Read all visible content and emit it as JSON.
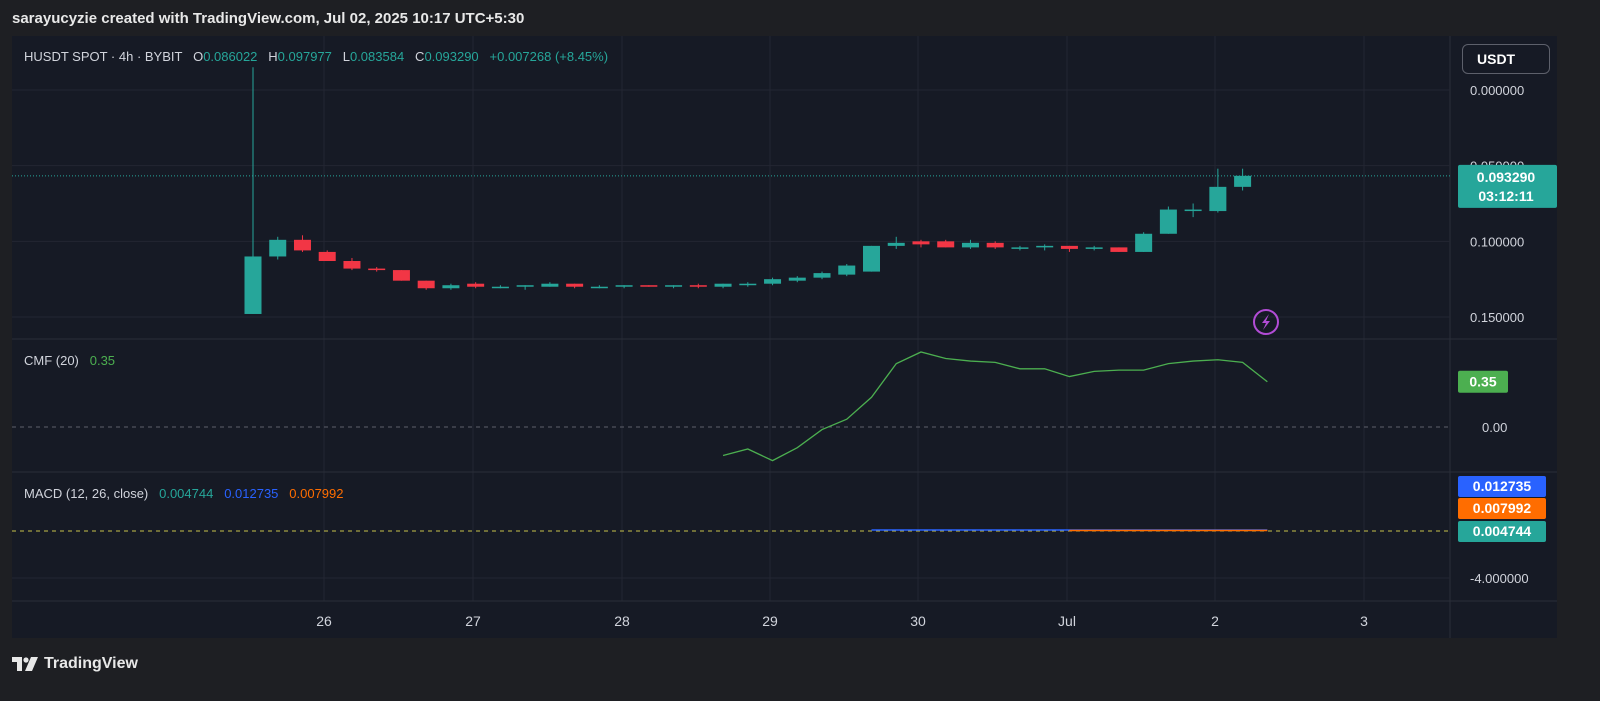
{
  "caption": "sarayucyzie created with TradingView.com, Jul 02, 2025 10:17 UTC+5:30",
  "currency_button": "USDT",
  "brand": "TradingView",
  "colors": {
    "up": "#26a69a",
    "down": "#f23645",
    "cmf": "#4caf50",
    "macd": "#2962ff",
    "signal": "#ff6d00",
    "histogram": "#26a69a",
    "price_line": "#26a69a",
    "bolt": "#b24cd6"
  },
  "price_pane": {
    "symbol": "HUSDT SPOT · 4h · BYBIT",
    "open_label": "O",
    "open": "0.086022",
    "high_label": "H",
    "high": "0.097977",
    "low_label": "L",
    "low": "0.083584",
    "close_label": "C",
    "close": "0.093290",
    "change": "+0.007268 (+8.45%)",
    "price_tag": "0.093290",
    "countdown": "03:12:11",
    "y_ticks": [
      "0.150000",
      "0.100000",
      "0.050000",
      "0.000000"
    ],
    "icon": "lightning-bolt-icon"
  },
  "cmf_pane": {
    "label": "CMF (20)",
    "value": "0.35",
    "y_ticks": [
      "0.00"
    ]
  },
  "macd_pane": {
    "label": "MACD (12, 26, close)",
    "hist_value": "0.004744",
    "macd_value": "0.012735",
    "signal_value": "0.007992",
    "y_ticks": [
      "-4.000000"
    ]
  },
  "x_axis": {
    "ticks": [
      "26",
      "27",
      "28",
      "29",
      "30",
      "Jul",
      "2",
      "3"
    ]
  },
  "chart_data": [
    {
      "type": "candlestick",
      "interval": "4h",
      "x_labels": [
        "26",
        "27",
        "28",
        "29",
        "30",
        "Jul",
        "2",
        "3"
      ],
      "ylim": [
        -0.01,
        0.17
      ],
      "y_ticks": [
        0.0,
        0.05,
        0.1,
        0.15
      ],
      "last_price": 0.09329,
      "candles": [
        {
          "o": 0.002,
          "h": 0.165,
          "l": 0.002,
          "c": 0.04
        },
        {
          "o": 0.04,
          "h": 0.053,
          "l": 0.038,
          "c": 0.051
        },
        {
          "o": 0.051,
          "h": 0.054,
          "l": 0.043,
          "c": 0.044
        },
        {
          "o": 0.043,
          "h": 0.044,
          "l": 0.037,
          "c": 0.037
        },
        {
          "o": 0.037,
          "h": 0.039,
          "l": 0.031,
          "c": 0.032
        },
        {
          "o": 0.032,
          "h": 0.033,
          "l": 0.03,
          "c": 0.031
        },
        {
          "o": 0.031,
          "h": 0.031,
          "l": 0.024,
          "c": 0.024
        },
        {
          "o": 0.024,
          "h": 0.024,
          "l": 0.018,
          "c": 0.019
        },
        {
          "o": 0.019,
          "h": 0.022,
          "l": 0.018,
          "c": 0.021
        },
        {
          "o": 0.022,
          "h": 0.023,
          "l": 0.019,
          "c": 0.02
        },
        {
          "o": 0.02,
          "h": 0.021,
          "l": 0.019,
          "c": 0.02
        },
        {
          "o": 0.02,
          "h": 0.021,
          "l": 0.018,
          "c": 0.021
        },
        {
          "o": 0.02,
          "h": 0.023,
          "l": 0.02,
          "c": 0.022
        },
        {
          "o": 0.022,
          "h": 0.022,
          "l": 0.019,
          "c": 0.02
        },
        {
          "o": 0.02,
          "h": 0.021,
          "l": 0.019,
          "c": 0.02
        },
        {
          "o": 0.02,
          "h": 0.021,
          "l": 0.019,
          "c": 0.021
        },
        {
          "o": 0.021,
          "h": 0.021,
          "l": 0.02,
          "c": 0.02
        },
        {
          "o": 0.02,
          "h": 0.021,
          "l": 0.019,
          "c": 0.021
        },
        {
          "o": 0.021,
          "h": 0.022,
          "l": 0.019,
          "c": 0.02
        },
        {
          "o": 0.02,
          "h": 0.022,
          "l": 0.019,
          "c": 0.022
        },
        {
          "o": 0.021,
          "h": 0.023,
          "l": 0.02,
          "c": 0.022
        },
        {
          "o": 0.022,
          "h": 0.026,
          "l": 0.021,
          "c": 0.025
        },
        {
          "o": 0.024,
          "h": 0.027,
          "l": 0.023,
          "c": 0.026
        },
        {
          "o": 0.026,
          "h": 0.03,
          "l": 0.025,
          "c": 0.029
        },
        {
          "o": 0.028,
          "h": 0.035,
          "l": 0.027,
          "c": 0.034
        },
        {
          "o": 0.03,
          "h": 0.047,
          "l": 0.03,
          "c": 0.047
        },
        {
          "o": 0.047,
          "h": 0.053,
          "l": 0.045,
          "c": 0.049
        },
        {
          "o": 0.05,
          "h": 0.051,
          "l": 0.046,
          "c": 0.048
        },
        {
          "o": 0.05,
          "h": 0.051,
          "l": 0.046,
          "c": 0.046
        },
        {
          "o": 0.046,
          "h": 0.051,
          "l": 0.045,
          "c": 0.049
        },
        {
          "o": 0.049,
          "h": 0.05,
          "l": 0.045,
          "c": 0.046
        },
        {
          "o": 0.046,
          "h": 0.047,
          "l": 0.044,
          "c": 0.046
        },
        {
          "o": 0.046,
          "h": 0.048,
          "l": 0.044,
          "c": 0.047
        },
        {
          "o": 0.047,
          "h": 0.047,
          "l": 0.043,
          "c": 0.045
        },
        {
          "o": 0.045,
          "h": 0.047,
          "l": 0.044,
          "c": 0.046
        },
        {
          "o": 0.046,
          "h": 0.046,
          "l": 0.043,
          "c": 0.043
        },
        {
          "o": 0.043,
          "h": 0.056,
          "l": 0.043,
          "c": 0.055
        },
        {
          "o": 0.055,
          "h": 0.073,
          "l": 0.055,
          "c": 0.071
        },
        {
          "o": 0.07,
          "h": 0.075,
          "l": 0.066,
          "c": 0.071
        },
        {
          "o": 0.07,
          "h": 0.098,
          "l": 0.069,
          "c": 0.086
        },
        {
          "o": 0.086,
          "h": 0.098,
          "l": 0.0836,
          "c": 0.0933
        }
      ]
    },
    {
      "type": "line",
      "name": "CMF (20)",
      "ylim": [
        -0.4,
        0.7
      ],
      "y_ticks": [
        0.0
      ],
      "points": [
        {
          "i": 19,
          "v": -0.22
        },
        {
          "i": 20,
          "v": -0.17
        },
        {
          "i": 21,
          "v": -0.26
        },
        {
          "i": 22,
          "v": -0.16
        },
        {
          "i": 23,
          "v": -0.02
        },
        {
          "i": 24,
          "v": 0.06
        },
        {
          "i": 25,
          "v": 0.23
        },
        {
          "i": 26,
          "v": 0.49
        },
        {
          "i": 27,
          "v": 0.58
        },
        {
          "i": 28,
          "v": 0.53
        },
        {
          "i": 29,
          "v": 0.51
        },
        {
          "i": 30,
          "v": 0.5
        },
        {
          "i": 31,
          "v": 0.45
        },
        {
          "i": 32,
          "v": 0.45
        },
        {
          "i": 33,
          "v": 0.39
        },
        {
          "i": 34,
          "v": 0.43
        },
        {
          "i": 35,
          "v": 0.44
        },
        {
          "i": 36,
          "v": 0.44
        },
        {
          "i": 37,
          "v": 0.49
        },
        {
          "i": 38,
          "v": 0.51
        },
        {
          "i": 39,
          "v": 0.52
        },
        {
          "i": 40,
          "v": 0.5
        },
        {
          "i": 41,
          "v": 0.35
        }
      ]
    },
    {
      "type": "line",
      "name": "MACD (12, 26, close)",
      "ylim": [
        -5.0,
        2.0
      ],
      "y_ticks": [
        -4.0
      ],
      "series": [
        {
          "name": "MACD",
          "from": 25,
          "to": 41,
          "value": 0.012735
        },
        {
          "name": "Signal",
          "from": 33,
          "to": 41,
          "value": 0.007992
        },
        {
          "name": "Histogram",
          "last": 0.004744
        }
      ]
    }
  ]
}
